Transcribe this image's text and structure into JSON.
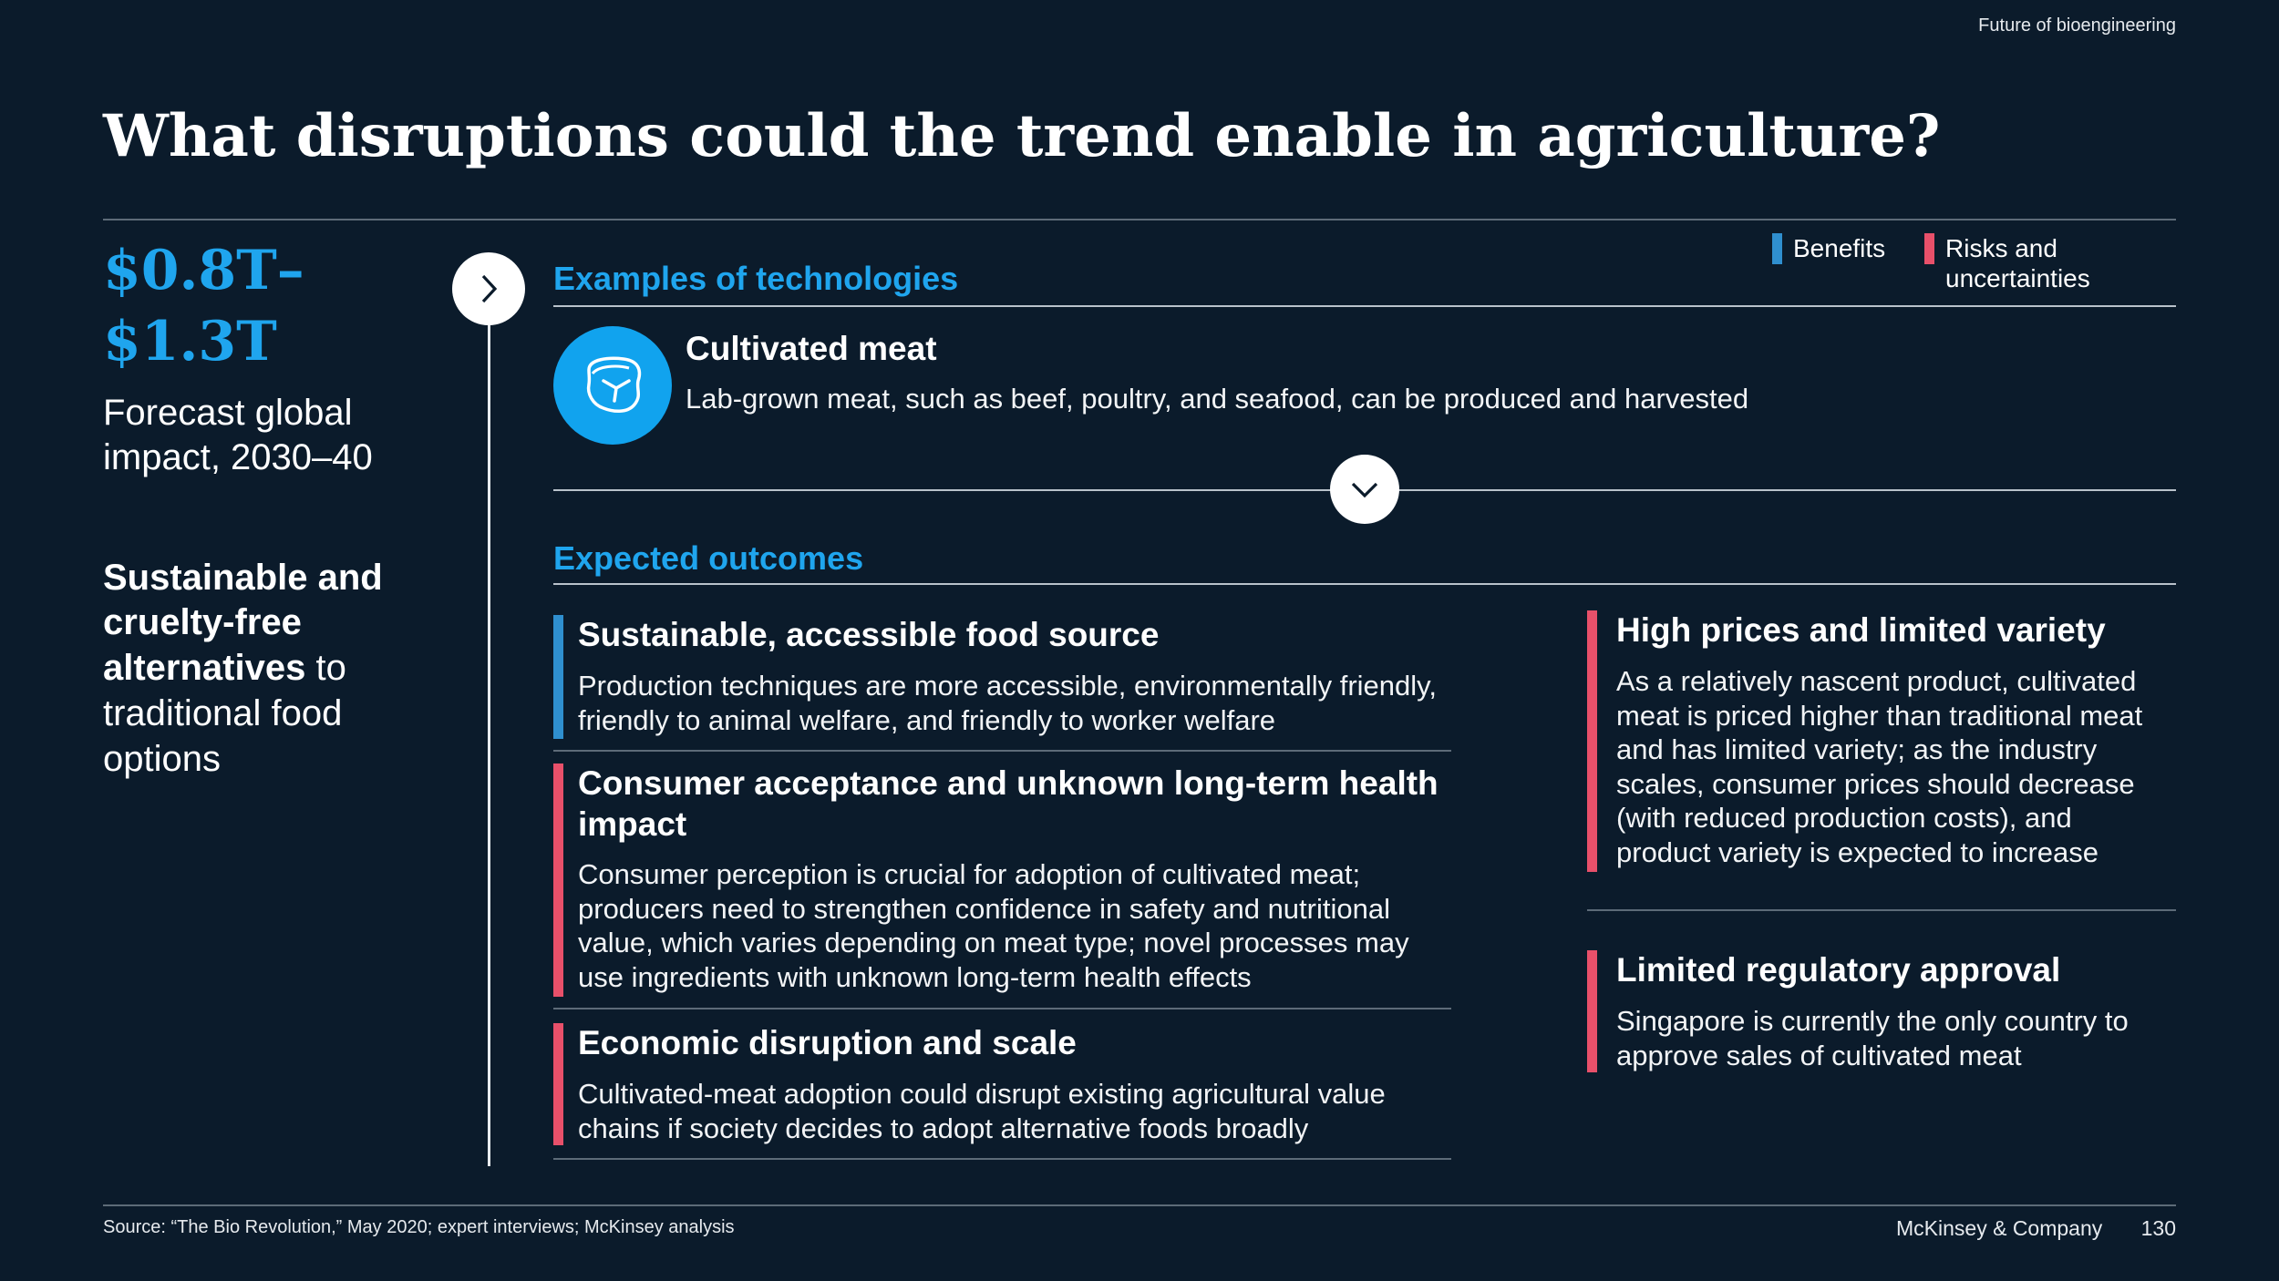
{
  "header": {
    "top_label": "Future of bioengineering"
  },
  "title": "What disruptions could the trend enable in agriculture?",
  "left": {
    "impact_value_line1": "$0.8T–",
    "impact_value_line2": "$1.3T",
    "impact_label_line1": "Forecast global",
    "impact_label_line2": "impact, 2030–40",
    "summary": {
      "line1_bold": "Sustainable and",
      "line2_bold": "cruelty-free",
      "line3_bold": "alternatives",
      "line3_rest": " to",
      "line4": "traditional food",
      "line5": "options"
    }
  },
  "legend": {
    "benefits": "Benefits",
    "risks_line1": "Risks and",
    "risks_line2": "uncertainties",
    "benefit_color": "#2f8fcf",
    "risk_color": "#e8506a"
  },
  "technologies": {
    "heading": "Examples of technologies",
    "icon": "cultivated-meat-icon",
    "name": "Cultivated meat",
    "description": "Lab-grown meat, such as beef, poultry, and seafood, can be produced and harvested"
  },
  "outcomes": {
    "heading": "Expected outcomes",
    "left": [
      {
        "kind": "benefit",
        "title_line1": "Sustainable, accessible food source",
        "body_line1": "Production techniques are more accessible, environmentally friendly,",
        "body_line2": "friendly to animal welfare, and friendly to worker welfare"
      },
      {
        "kind": "risk",
        "title_line1": "Consumer acceptance and unknown long-term health",
        "title_line2": "impact",
        "body_line1": "Consumer perception is crucial for adoption of cultivated meat;",
        "body_line2": "producers need to strengthen confidence in safety and nutritional",
        "body_line3": "value, which varies depending on meat type; novel processes may",
        "body_line4": "use ingredients with unknown long-term health effects"
      },
      {
        "kind": "risk",
        "title_line1": "Economic disruption and scale",
        "body_line1": "Cultivated-meat adoption could disrupt existing agricultural value",
        "body_line2": "chains if society decides to adopt alternative foods broadly"
      }
    ],
    "right": [
      {
        "kind": "risk",
        "title_line1": "High prices and limited variety",
        "body_line1": "As a relatively nascent product, cultivated",
        "body_line2": "meat is priced higher than traditional meat",
        "body_line3": "and has limited variety; as the industry",
        "body_line4": "scales, consumer prices should decrease",
        "body_line5": "(with reduced production costs), and",
        "body_line6": "product variety is expected to increase"
      },
      {
        "kind": "risk",
        "title_line1": "Limited regulatory approval",
        "body_line1": "Singapore is currently the only country to",
        "body_line2": "approve sales of cultivated meat"
      }
    ]
  },
  "footer": {
    "source": "Source: “The Bio Revolution,” May 2020; expert interviews; McKinsey analysis",
    "brand": "McKinsey & Company",
    "page_number": "130"
  }
}
